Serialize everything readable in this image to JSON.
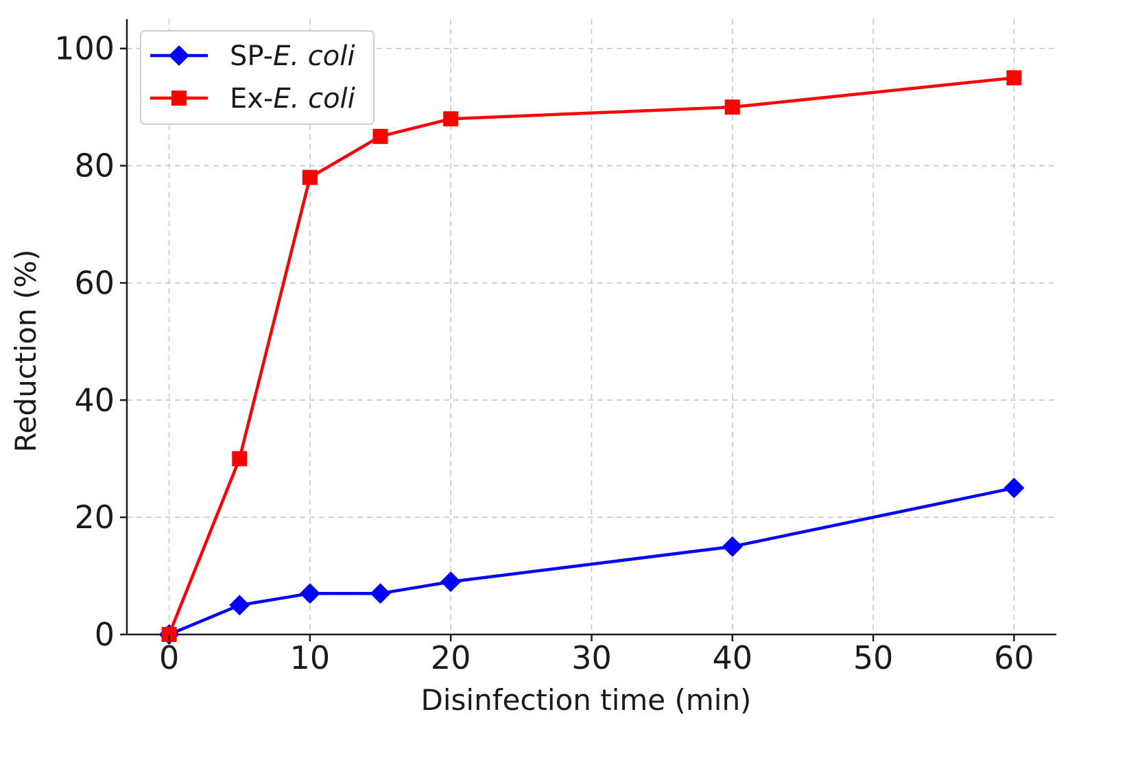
{
  "chart_data": {
    "type": "line",
    "title": "",
    "xlabel": "Disinfection time (min)",
    "ylabel": "Reduction (%)",
    "xlim": [
      -3,
      63
    ],
    "ylim": [
      0,
      105
    ],
    "xticks": [
      0,
      10,
      20,
      30,
      40,
      50,
      60
    ],
    "yticks": [
      0,
      20,
      40,
      60,
      80,
      100
    ],
    "grid": true,
    "legend_position": "top-left",
    "series": [
      {
        "name": "SP-E. coli",
        "name_prefix": "SP-",
        "name_italic": "E.  coli",
        "color": "#0000ff",
        "marker": "diamond",
        "x": [
          0,
          5,
          10,
          15,
          20,
          40,
          60
        ],
        "y": [
          0,
          5,
          7,
          7,
          9,
          15,
          25
        ]
      },
      {
        "name": "Ex-E. coli",
        "name_prefix": "Ex-",
        "name_italic": "E.  coli",
        "color": "#ff0000",
        "marker": "square",
        "x": [
          0,
          5,
          10,
          15,
          20,
          40,
          60
        ],
        "y": [
          0,
          30,
          78,
          85,
          88,
          90,
          95
        ]
      }
    ]
  }
}
